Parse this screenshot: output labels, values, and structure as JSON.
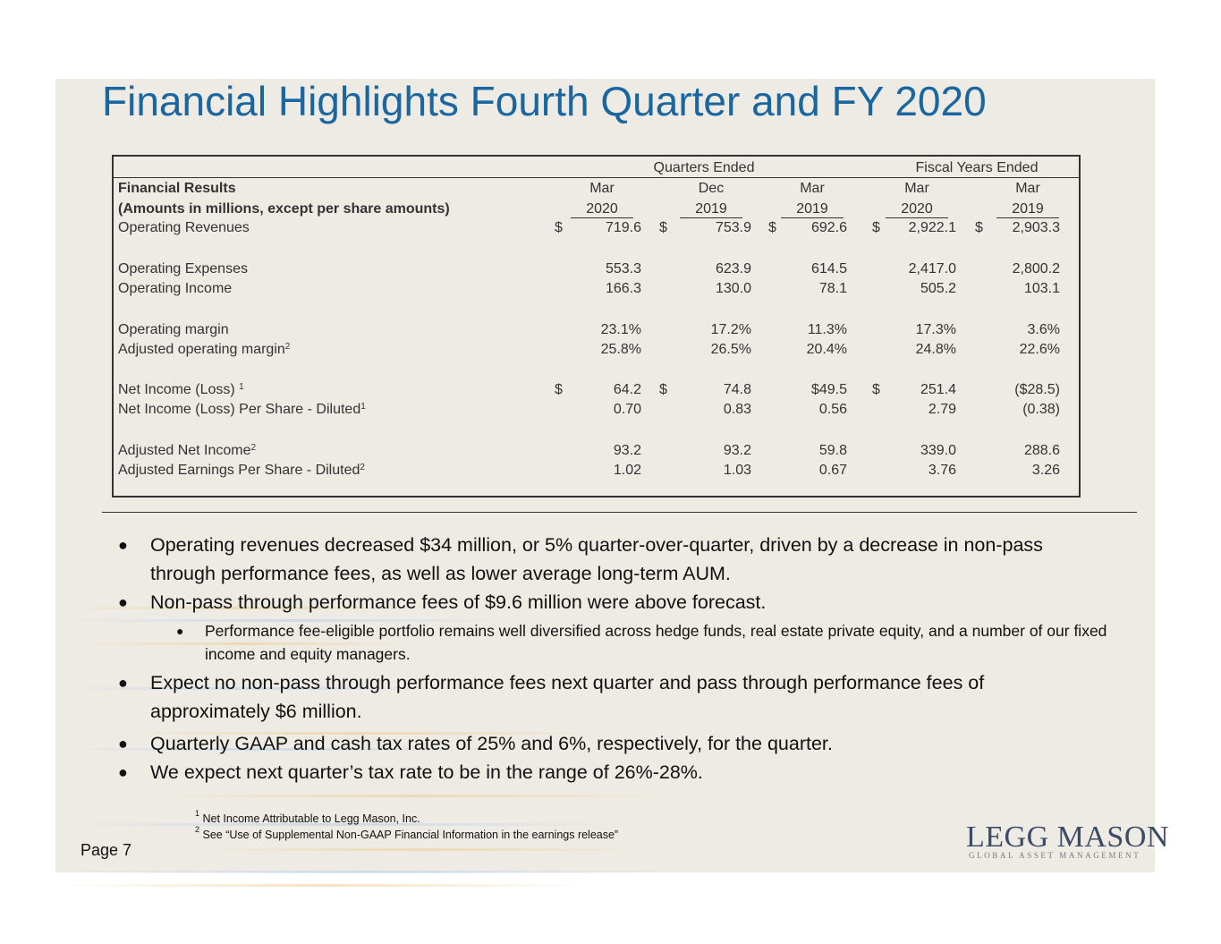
{
  "title": "Financial Highlights Fourth Quarter and FY 2020",
  "table": {
    "group_quarters": "Quarters Ended",
    "group_fiscal": "Fiscal Years Ended",
    "header_label_1": "Financial Results",
    "header_label_2": "(Amounts in millions, except per share amounts)",
    "columns": [
      {
        "month": "Mar",
        "year": "2020"
      },
      {
        "month": "Dec",
        "year": "2019"
      },
      {
        "month": "Mar",
        "year": "2019"
      },
      {
        "month": "Mar",
        "year": "2020"
      },
      {
        "month": "Mar",
        "year": "2019"
      }
    ],
    "rows": [
      {
        "label": "Operating Revenues",
        "sup": "",
        "dollar": [
          "$",
          "$",
          "$",
          "$",
          "$"
        ],
        "values": [
          "719.6",
          "753.9",
          "692.6",
          "2,922.1",
          "2,903.3"
        ]
      },
      {
        "label": "Operating Expenses",
        "sup": "",
        "dollar": [
          "",
          "",
          "",
          "",
          ""
        ],
        "values": [
          "553.3",
          "623.9",
          "614.5",
          "2,417.0",
          "2,800.2"
        ]
      },
      {
        "label": "Operating Income",
        "sup": "",
        "dollar": [
          "",
          "",
          "",
          "",
          ""
        ],
        "values": [
          "166.3",
          "130.0",
          "78.1",
          "505.2",
          "103.1"
        ]
      },
      {
        "label": "Operating margin",
        "sup": "",
        "dollar": [
          "",
          "",
          "",
          "",
          ""
        ],
        "values": [
          "23.1%",
          "17.2%",
          "11.3%",
          "17.3%",
          "3.6%"
        ]
      },
      {
        "label": "Adjusted operating margin",
        "sup": "2",
        "dollar": [
          "",
          "",
          "",
          "",
          ""
        ],
        "values": [
          "25.8%",
          "26.5%",
          "20.4%",
          "24.8%",
          "22.6%"
        ]
      },
      {
        "label": "Net Income (Loss) ",
        "sup": "1",
        "dollar": [
          "$",
          "$",
          "",
          "$",
          ""
        ],
        "values": [
          "64.2",
          "74.8",
          "$49.5",
          "251.4",
          "($28.5)"
        ]
      },
      {
        "label": "Net Income (Loss) Per Share - Diluted",
        "sup": "1",
        "dollar": [
          "",
          "",
          "",
          "",
          ""
        ],
        "values": [
          "0.70",
          "0.83",
          "0.56",
          "2.79",
          "(0.38)"
        ]
      },
      {
        "label": "Adjusted Net Income",
        "sup": "2",
        "dollar": [
          "",
          "",
          "",
          "",
          ""
        ],
        "values": [
          "93.2",
          "93.2",
          "59.8",
          "339.0",
          "288.6"
        ]
      },
      {
        "label": "Adjusted Earnings Per Share - Diluted",
        "sup": "2",
        "dollar": [
          "",
          "",
          "",
          "",
          ""
        ],
        "values": [
          "1.02",
          "1.03",
          "0.67",
          "3.76",
          "3.26"
        ]
      }
    ]
  },
  "bullets": [
    "Operating revenues decreased $34 million, or 5% quarter-over-quarter, driven by a decrease in non-pass through performance fees, as well as lower average long-term AUM.",
    "Non-pass through performance fees of $9.6 million were above forecast.",
    "Expect no non-pass through performance fees next quarter and pass through performance fees of approximately $6 million.",
    "Quarterly GAAP and cash tax rates of 25% and 6%, respectively, for the quarter.",
    "We expect next quarter’s tax rate to be in the range of 26%-28%."
  ],
  "sub_bullet": "Performance fee-eligible portfolio remains well diversified across hedge funds, real estate private equity, and a number of our fixed income and equity managers.",
  "footnotes": [
    {
      "num": "1",
      "text": "Net Income Attributable to Legg Mason, Inc."
    },
    {
      "num": "2",
      "text": "See “Use of Supplemental Non-GAAP Financial Information in the earnings release”"
    }
  ],
  "page_label": "Page 7",
  "logo": {
    "brand": "LEGG MASON",
    "tagline": "GLOBAL ASSET MANAGEMENT"
  },
  "colors": {
    "title": "#1a66a0",
    "slide_bg": "#eeebe5",
    "logo": "#3b4c66"
  }
}
